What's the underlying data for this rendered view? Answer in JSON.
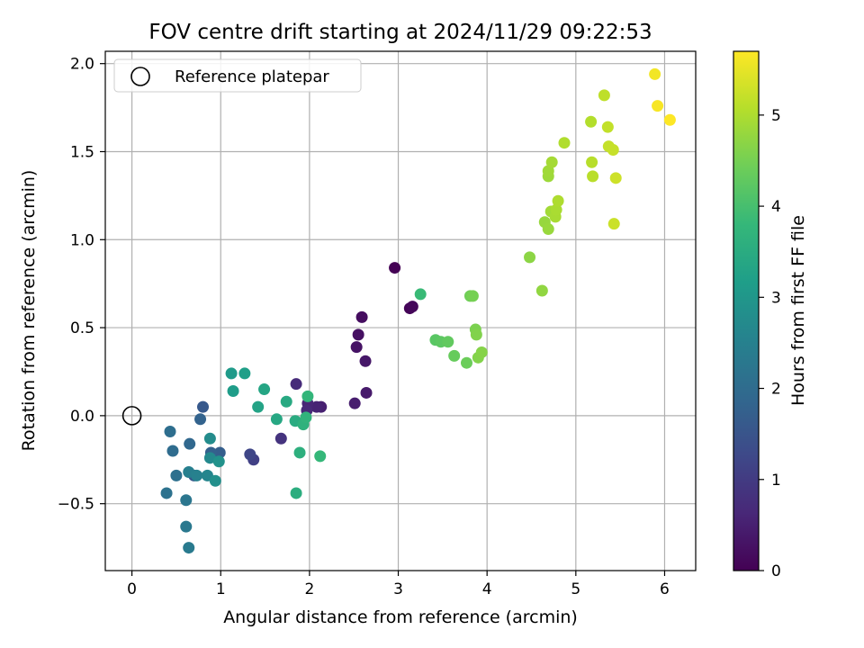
{
  "chart_data": {
    "type": "scatter",
    "title": "FOV centre drift starting at 2024/11/29 09:22:53",
    "xlabel": "Angular distance from reference (arcmin)",
    "ylabel": "Rotation from reference (arcmin)",
    "xlim": [
      -0.3,
      6.35
    ],
    "ylim": [
      -0.88,
      2.07
    ],
    "xticks": [
      0,
      1,
      2,
      3,
      4,
      5,
      6
    ],
    "xtick_labels": [
      "0",
      "1",
      "2",
      "3",
      "4",
      "5",
      "6"
    ],
    "yticks": [
      -0.5,
      0.0,
      0.5,
      1.0,
      1.5,
      2.0
    ],
    "ytick_labels": [
      "−0.5",
      "0.0",
      "0.5",
      "1.0",
      "1.5",
      "2.0"
    ],
    "grid": true,
    "legend": {
      "position": "upper-left",
      "entries": [
        "Reference platepar"
      ]
    },
    "reference_point": {
      "x": 0,
      "y": 0,
      "style": "open-circle"
    },
    "colorbar": {
      "label": "Hours from first FF file",
      "range": [
        0,
        5.7
      ],
      "ticks": [
        0,
        1,
        2,
        3,
        4,
        5
      ],
      "tick_labels": [
        "0",
        "1",
        "2",
        "3",
        "4",
        "5"
      ],
      "colormap": "viridis",
      "stops": [
        "#440154",
        "#482878",
        "#3e4989",
        "#31688e",
        "#26828e",
        "#1f9e89",
        "#35b779",
        "#6ece58",
        "#b5de2b",
        "#fde725"
      ]
    },
    "series": [
      {
        "values": [
          {
            "x": 2.96,
            "y": 0.84,
            "c": 0.0
          },
          {
            "x": 3.13,
            "y": 0.61,
            "c": 0.05
          },
          {
            "x": 3.16,
            "y": 0.62,
            "c": 0.1
          },
          {
            "x": 2.59,
            "y": 0.56,
            "c": 0.2
          },
          {
            "x": 2.55,
            "y": 0.46,
            "c": 0.25
          },
          {
            "x": 2.53,
            "y": 0.39,
            "c": 0.3
          },
          {
            "x": 2.63,
            "y": 0.31,
            "c": 0.35
          },
          {
            "x": 2.64,
            "y": 0.13,
            "c": 0.4
          },
          {
            "x": 2.51,
            "y": 0.07,
            "c": 0.45
          },
          {
            "x": 2.13,
            "y": 0.05,
            "c": 0.5
          },
          {
            "x": 2.08,
            "y": 0.05,
            "c": 0.55
          },
          {
            "x": 1.98,
            "y": 0.07,
            "c": 0.6
          },
          {
            "x": 1.97,
            "y": 0.03,
            "c": 0.65
          },
          {
            "x": 1.85,
            "y": 0.18,
            "c": 0.7
          },
          {
            "x": 1.68,
            "y": -0.13,
            "c": 0.85
          },
          {
            "x": 1.37,
            "y": -0.25,
            "c": 1.1
          },
          {
            "x": 1.33,
            "y": -0.22,
            "c": 1.2
          },
          {
            "x": 0.7,
            "y": -0.34,
            "c": 1.55
          },
          {
            "x": 0.8,
            "y": 0.05,
            "c": 1.6
          },
          {
            "x": 0.99,
            "y": -0.21,
            "c": 1.7
          },
          {
            "x": 0.89,
            "y": -0.21,
            "c": 1.75
          },
          {
            "x": 0.77,
            "y": -0.02,
            "c": 1.8
          },
          {
            "x": 0.65,
            "y": -0.16,
            "c": 1.9
          },
          {
            "x": 0.46,
            "y": -0.2,
            "c": 2.0
          },
          {
            "x": 0.43,
            "y": -0.09,
            "c": 2.05
          },
          {
            "x": 0.5,
            "y": -0.34,
            "c": 2.1
          },
          {
            "x": 0.39,
            "y": -0.44,
            "c": 2.15
          },
          {
            "x": 0.61,
            "y": -0.48,
            "c": 2.25
          },
          {
            "x": 0.61,
            "y": -0.63,
            "c": 2.3
          },
          {
            "x": 0.64,
            "y": -0.75,
            "c": 2.35
          },
          {
            "x": 0.64,
            "y": -0.32,
            "c": 2.45
          },
          {
            "x": 0.73,
            "y": -0.34,
            "c": 2.5
          },
          {
            "x": 0.85,
            "y": -0.34,
            "c": 2.6
          },
          {
            "x": 0.88,
            "y": -0.24,
            "c": 2.7
          },
          {
            "x": 0.88,
            "y": -0.13,
            "c": 2.75
          },
          {
            "x": 0.94,
            "y": -0.37,
            "c": 2.85
          },
          {
            "x": 0.98,
            "y": -0.26,
            "c": 2.9
          },
          {
            "x": 1.12,
            "y": 0.24,
            "c": 3.1
          },
          {
            "x": 1.14,
            "y": 0.14,
            "c": 3.15
          },
          {
            "x": 1.27,
            "y": 0.24,
            "c": 3.2
          },
          {
            "x": 1.42,
            "y": 0.05,
            "c": 3.3
          },
          {
            "x": 1.49,
            "y": 0.15,
            "c": 3.35
          },
          {
            "x": 1.63,
            "y": -0.02,
            "c": 3.4
          },
          {
            "x": 1.74,
            "y": 0.08,
            "c": 3.45
          },
          {
            "x": 1.84,
            "y": -0.03,
            "c": 3.5
          },
          {
            "x": 1.85,
            "y": -0.44,
            "c": 3.55
          },
          {
            "x": 1.89,
            "y": -0.21,
            "c": 3.6
          },
          {
            "x": 1.93,
            "y": -0.05,
            "c": 3.65
          },
          {
            "x": 1.96,
            "y": -0.01,
            "c": 3.7
          },
          {
            "x": 1.98,
            "y": 0.11,
            "c": 3.75
          },
          {
            "x": 2.12,
            "y": -0.23,
            "c": 3.8
          },
          {
            "x": 3.25,
            "y": 0.69,
            "c": 3.85
          },
          {
            "x": 3.42,
            "y": 0.43,
            "c": 4.2
          },
          {
            "x": 3.48,
            "y": 0.42,
            "c": 4.25
          },
          {
            "x": 3.56,
            "y": 0.42,
            "c": 4.3
          },
          {
            "x": 3.63,
            "y": 0.34,
            "c": 4.35
          },
          {
            "x": 3.77,
            "y": 0.3,
            "c": 4.4
          },
          {
            "x": 3.81,
            "y": 0.68,
            "c": 4.45
          },
          {
            "x": 3.84,
            "y": 0.68,
            "c": 4.5
          },
          {
            "x": 3.87,
            "y": 0.49,
            "c": 4.55
          },
          {
            "x": 3.88,
            "y": 0.46,
            "c": 4.6
          },
          {
            "x": 3.9,
            "y": 0.33,
            "c": 4.62
          },
          {
            "x": 3.94,
            "y": 0.36,
            "c": 4.65
          },
          {
            "x": 4.48,
            "y": 0.9,
            "c": 4.7
          },
          {
            "x": 4.62,
            "y": 0.71,
            "c": 4.75
          },
          {
            "x": 4.65,
            "y": 1.1,
            "c": 4.8
          },
          {
            "x": 4.69,
            "y": 1.06,
            "c": 4.82
          },
          {
            "x": 4.69,
            "y": 1.36,
            "c": 4.85
          },
          {
            "x": 4.69,
            "y": 1.39,
            "c": 4.88
          },
          {
            "x": 4.72,
            "y": 1.16,
            "c": 4.9
          },
          {
            "x": 4.73,
            "y": 1.44,
            "c": 4.92
          },
          {
            "x": 4.77,
            "y": 1.13,
            "c": 4.95
          },
          {
            "x": 4.78,
            "y": 1.17,
            "c": 4.97
          },
          {
            "x": 4.8,
            "y": 1.22,
            "c": 5.0
          },
          {
            "x": 4.87,
            "y": 1.55,
            "c": 5.02
          },
          {
            "x": 5.17,
            "y": 1.67,
            "c": 5.05
          },
          {
            "x": 5.18,
            "y": 1.44,
            "c": 5.08
          },
          {
            "x": 5.19,
            "y": 1.36,
            "c": 5.1
          },
          {
            "x": 5.32,
            "y": 1.82,
            "c": 5.15
          },
          {
            "x": 5.36,
            "y": 1.64,
            "c": 5.18
          },
          {
            "x": 5.37,
            "y": 1.53,
            "c": 5.2
          },
          {
            "x": 5.42,
            "y": 1.51,
            "c": 5.22
          },
          {
            "x": 5.43,
            "y": 1.09,
            "c": 5.25
          },
          {
            "x": 5.45,
            "y": 1.35,
            "c": 5.28
          },
          {
            "x": 5.89,
            "y": 1.94,
            "c": 5.6
          },
          {
            "x": 5.92,
            "y": 1.76,
            "c": 5.65
          },
          {
            "x": 6.06,
            "y": 1.68,
            "c": 5.7
          }
        ]
      }
    ]
  }
}
